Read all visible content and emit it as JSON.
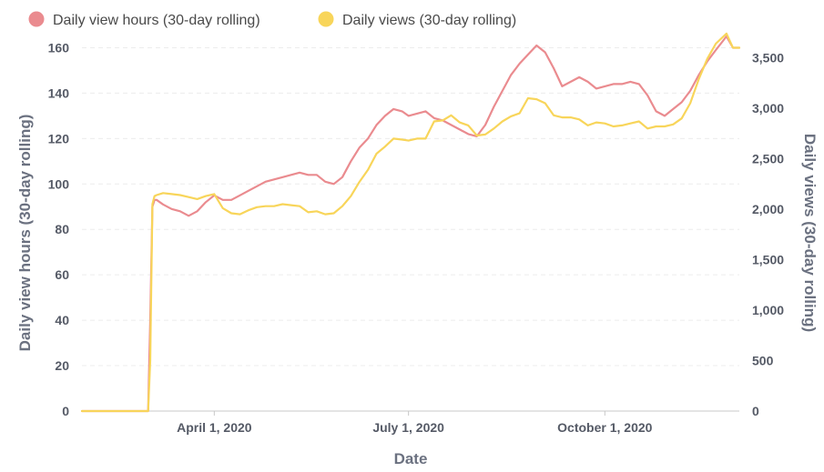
{
  "chart_data": {
    "type": "line",
    "title": "",
    "xlabel": "Date",
    "ylabel": "Daily view hours (30-day rolling)",
    "y2label": "Daily views (30-day rolling)",
    "ylim": [
      0,
      165
    ],
    "y2lim": [
      0,
      3712.5
    ],
    "legend_position": "top-left",
    "grid": true,
    "x_ticks": [
      "April 1, 2020",
      "July 1, 2020",
      "October 1, 2020"
    ],
    "y_ticks": [
      "0",
      "20",
      "40",
      "60",
      "80",
      "100",
      "120",
      "140",
      "160"
    ],
    "y2_ticks": [
      "0",
      "500",
      "1,000",
      "1,500",
      "2,000",
      "2,500",
      "3,000",
      "3,500"
    ],
    "x_range_days": [
      -62,
      246
    ],
    "colors": {
      "hours": "#ea8b8f",
      "views": "#f8d55a"
    },
    "series": [
      {
        "name": "Daily view hours (30-day rolling)",
        "axis": "left",
        "x": [
          -62,
          -35,
          -31,
          -30,
          -29,
          -28,
          -27,
          -24,
          -20,
          -16,
          -12,
          -8,
          -4,
          0,
          4,
          8,
          12,
          16,
          20,
          24,
          28,
          32,
          36,
          40,
          44,
          48,
          52,
          56,
          60,
          64,
          68,
          72,
          76,
          80,
          84,
          88,
          91,
          95,
          99,
          103,
          107,
          111,
          115,
          119,
          123,
          127,
          131,
          135,
          139,
          143,
          147,
          151,
          155,
          159,
          163,
          167,
          171,
          175,
          179,
          183,
          187,
          191,
          195,
          199,
          203,
          207,
          211,
          215,
          219,
          223,
          227,
          231,
          235,
          240,
          243,
          246
        ],
        "values": [
          0,
          0,
          0,
          40,
          90,
          93,
          93,
          91,
          89,
          88,
          86,
          88,
          92,
          95,
          93,
          93,
          95,
          97,
          99,
          101,
          102,
          103,
          104,
          105,
          104,
          104,
          101,
          100,
          103,
          110,
          116,
          120,
          126,
          130,
          133,
          132,
          130,
          131,
          132,
          129,
          128,
          126,
          124,
          122,
          121,
          126,
          134,
          141,
          148,
          153,
          157,
          161,
          158,
          151,
          143,
          145,
          147,
          145,
          142,
          143,
          144,
          144,
          145,
          144,
          139,
          132,
          130,
          133,
          136,
          141,
          148,
          154,
          159,
          165,
          160,
          160
        ]
      },
      {
        "name": "Daily views (30-day rolling)",
        "axis": "right",
        "x": [
          -62,
          -35,
          -31,
          -30,
          -29,
          -28,
          -27,
          -24,
          -20,
          -16,
          -12,
          -8,
          -4,
          0,
          4,
          8,
          12,
          16,
          20,
          24,
          28,
          32,
          36,
          40,
          44,
          48,
          52,
          56,
          60,
          64,
          68,
          72,
          76,
          80,
          84,
          88,
          91,
          95,
          99,
          103,
          107,
          111,
          115,
          119,
          123,
          127,
          131,
          135,
          139,
          143,
          147,
          151,
          155,
          159,
          163,
          167,
          171,
          175,
          179,
          183,
          187,
          191,
          195,
          199,
          203,
          207,
          211,
          215,
          219,
          223,
          227,
          231,
          235,
          240,
          243,
          246
        ],
        "values": [
          0,
          0,
          0,
          500,
          2050,
          2130,
          2140,
          2160,
          2150,
          2140,
          2120,
          2100,
          2130,
          2150,
          2010,
          1960,
          1950,
          1990,
          2020,
          2030,
          2030,
          2050,
          2040,
          2030,
          1970,
          1980,
          1950,
          1960,
          2030,
          2130,
          2270,
          2390,
          2550,
          2620,
          2700,
          2690,
          2680,
          2700,
          2700,
          2870,
          2880,
          2930,
          2860,
          2830,
          2730,
          2740,
          2800,
          2870,
          2920,
          2950,
          3100,
          3090,
          3050,
          2930,
          2910,
          2910,
          2890,
          2830,
          2860,
          2850,
          2820,
          2830,
          2850,
          2870,
          2800,
          2820,
          2820,
          2840,
          2900,
          3050,
          3290,
          3490,
          3640,
          3740,
          3600,
          3600
        ]
      }
    ]
  }
}
